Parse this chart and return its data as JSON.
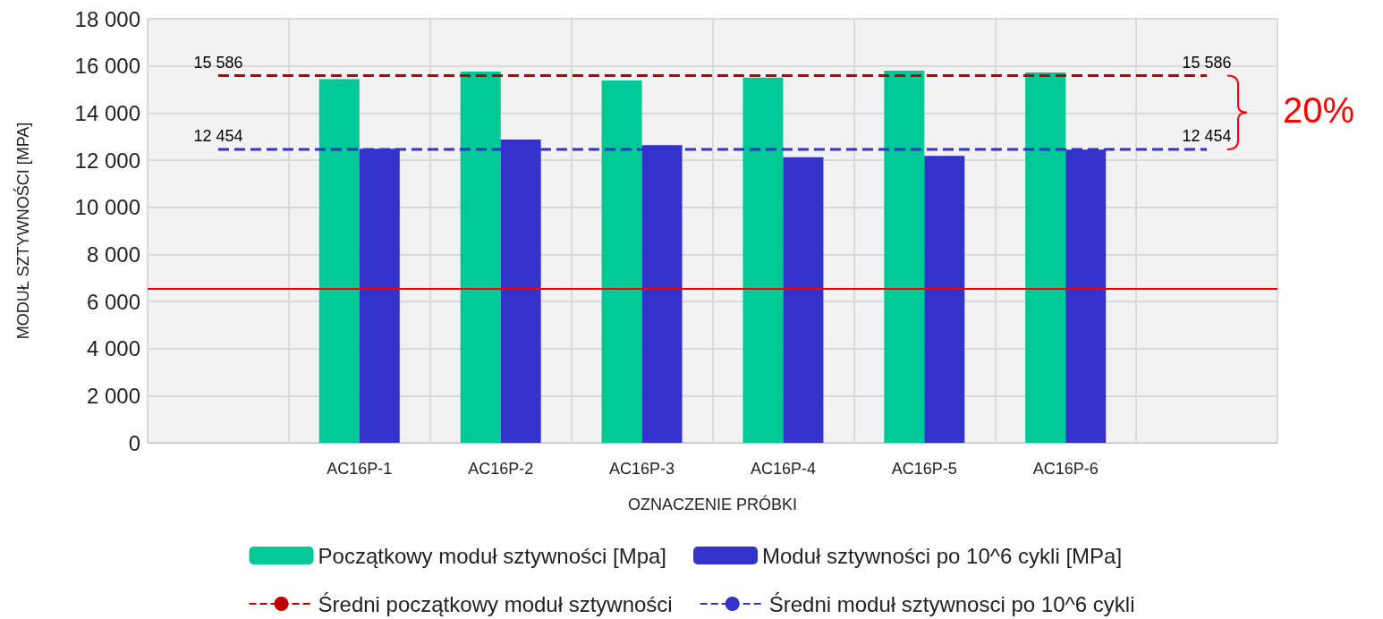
{
  "chart_data": {
    "type": "bar",
    "xlabel": "OZNACZENIE PRÓBKI",
    "ylabel": "MODUŁ SZTYWNOŚCI [MPA]",
    "categories": [
      null,
      "AC16P-1",
      "AC16P-2",
      "AC16P-3",
      "AC16P-4",
      "AC16P-5",
      "AC16P-6",
      null
    ],
    "series": [
      {
        "name": "Początkowy moduł sztywności [Mpa]",
        "color": "#00c896",
        "values": [
          null,
          15440,
          15760,
          15380,
          15500,
          15800,
          15720,
          null
        ]
      },
      {
        "name": "Moduł sztywności po 10^6 cykli [MPa]",
        "color": "#3333cc",
        "values": [
          null,
          12480,
          12870,
          12640,
          12120,
          12180,
          12450,
          null
        ]
      },
      {
        "name": "Średni początkowy moduł sztywności",
        "type": "line",
        "line_style": "dashed",
        "marker": "none",
        "color": "#c00000",
        "values": [
          15586,
          15586,
          15586,
          15586,
          15586,
          15586,
          15586,
          15586
        ],
        "value_labels": [
          "15 586",
          null,
          null,
          null,
          null,
          null,
          null,
          "15 586"
        ]
      },
      {
        "name": "Średni moduł sztywnosci po 10^6 cykli",
        "type": "line",
        "line_style": "dashed",
        "marker": "none",
        "color": "#3333cc",
        "values": [
          12454,
          12454,
          12454,
          12454,
          12454,
          12454,
          12454,
          12454
        ],
        "value_labels": [
          "12 454",
          null,
          null,
          null,
          null,
          null,
          null,
          "12 454"
        ]
      }
    ],
    "ylim": [
      0,
      18000
    ],
    "yticks": [
      0,
      {
        "value": 2000,
        "label": "2 000"
      },
      {
        "value": 4000,
        "label": "4 000"
      },
      {
        "value": 6000,
        "label": "6 000"
      },
      {
        "value": 8000,
        "label": "8 000"
      },
      {
        "value": 10000,
        "label": "10 000"
      },
      {
        "value": 12000,
        "label": "12 000"
      },
      {
        "value": 14000,
        "label": "14 000"
      },
      {
        "value": 16000,
        "label": "16 000"
      },
      {
        "value": 18000,
        "label": "18 000"
      }
    ],
    "ref_lines": [
      {
        "axis": "y",
        "value": 6530,
        "color": "#ff0000",
        "line_style": "solid"
      }
    ],
    "annotations": [
      "20%"
    ],
    "grid": true,
    "legend": "bottom"
  }
}
